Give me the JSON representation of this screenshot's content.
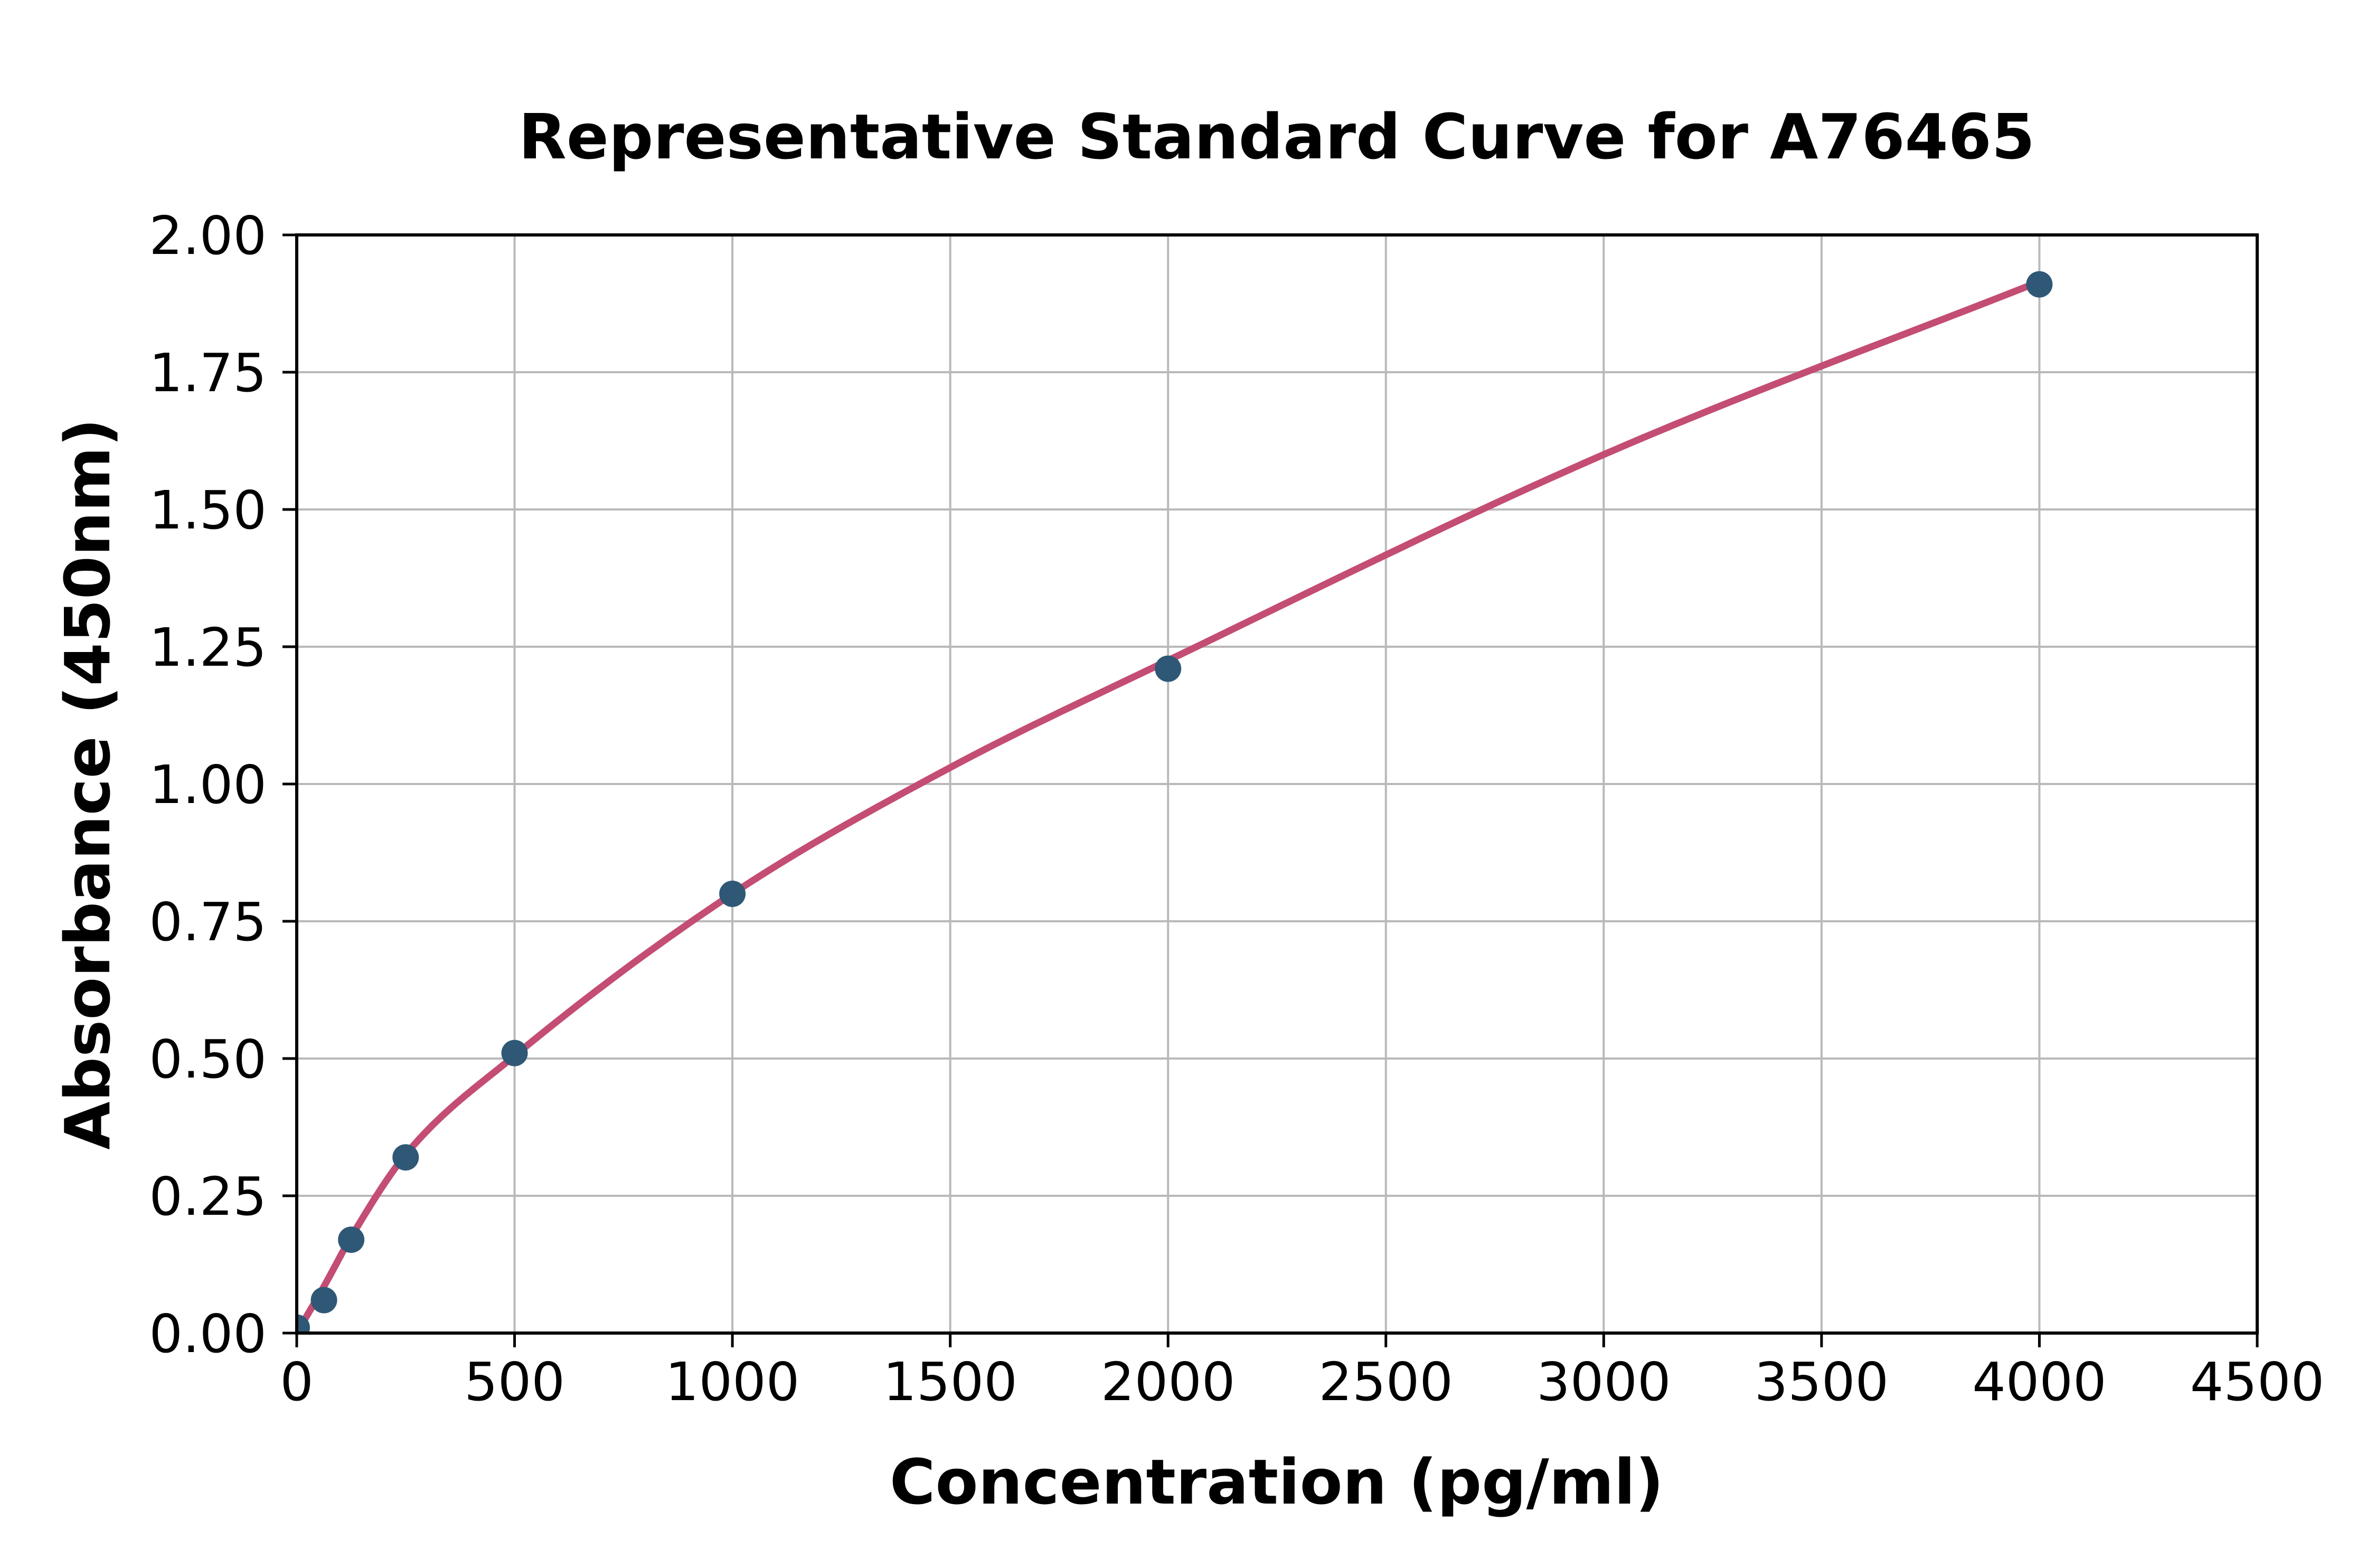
{
  "page": {
    "background": "#ffffff"
  },
  "chart_data": {
    "type": "scatter",
    "title": "Representative Standard Curve for A76465",
    "xlabel": "Concentration (pg/ml)",
    "ylabel": "Absorbance (450nm)",
    "xlim": [
      0,
      4500
    ],
    "ylim": [
      0,
      2.0
    ],
    "x_ticks": [
      0,
      500,
      1000,
      1500,
      2000,
      2500,
      3000,
      3500,
      4000,
      4500
    ],
    "x_tick_labels": [
      "0",
      "500",
      "1000",
      "1500",
      "2000",
      "2500",
      "3000",
      "3500",
      "4000",
      "4500"
    ],
    "y_ticks": [
      0,
      0.25,
      0.5,
      0.75,
      1.0,
      1.25,
      1.5,
      1.75,
      2.0
    ],
    "y_tick_labels": [
      "0.00",
      "0.25",
      "0.50",
      "0.75",
      "1.00",
      "1.25",
      "1.50",
      "1.75",
      "2.00"
    ],
    "grid": true,
    "legend": "none",
    "series": [
      {
        "name": "standards",
        "style": "scatter-markers",
        "points": [
          {
            "x": 0,
            "y": 0.01
          },
          {
            "x": 62.5,
            "y": 0.06
          },
          {
            "x": 125,
            "y": 0.17
          },
          {
            "x": 250,
            "y": 0.32
          },
          {
            "x": 500,
            "y": 0.51
          },
          {
            "x": 1000,
            "y": 0.8
          },
          {
            "x": 2000,
            "y": 1.21
          },
          {
            "x": 4000,
            "y": 1.91
          }
        ]
      },
      {
        "name": "fitted-curve",
        "style": "smooth-line",
        "points": [
          {
            "x": 0,
            "y": 0.0
          },
          {
            "x": 62.5,
            "y": 0.085
          },
          {
            "x": 125,
            "y": 0.175
          },
          {
            "x": 250,
            "y": 0.325
          },
          {
            "x": 500,
            "y": 0.505
          },
          {
            "x": 1000,
            "y": 0.8
          },
          {
            "x": 1500,
            "y": 1.03
          },
          {
            "x": 2000,
            "y": 1.225
          },
          {
            "x": 3000,
            "y": 1.6
          },
          {
            "x": 4000,
            "y": 1.915
          }
        ]
      }
    ],
    "colors": {
      "curve": "#c44d73",
      "marker": "#2f5876",
      "grid": "#b9b9b9",
      "axis": "#000000",
      "background": "#ffffff"
    }
  }
}
